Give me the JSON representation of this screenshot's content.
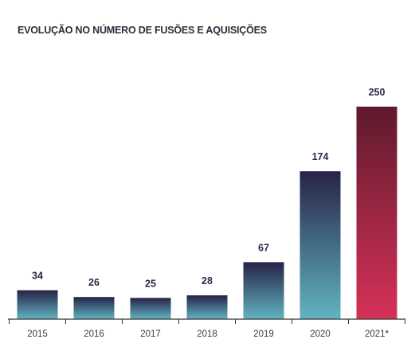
{
  "chart_data": {
    "type": "bar",
    "title": "EVOLUÇÃO NO NÚMERO DE FUSÕES E AQUISIÇÕES",
    "categories": [
      "2015",
      "2016",
      "2017",
      "2018",
      "2019",
      "2020",
      "2021*"
    ],
    "values": [
      34,
      26,
      25,
      28,
      67,
      174,
      250
    ],
    "data_labels": [
      "34",
      "26",
      "25",
      "28",
      "67",
      "174",
      "250"
    ],
    "xlabel": "",
    "ylabel": "",
    "ylim": [
      0,
      250
    ],
    "grid": false,
    "legend": "none",
    "highlighted_category": "2021*",
    "colors": {
      "bar_top": "#262347",
      "bar_bottom": "#62b4c2",
      "highlight_top": "#5e1a2c",
      "highlight_bottom": "#d63158",
      "axis": "#333333"
    }
  }
}
